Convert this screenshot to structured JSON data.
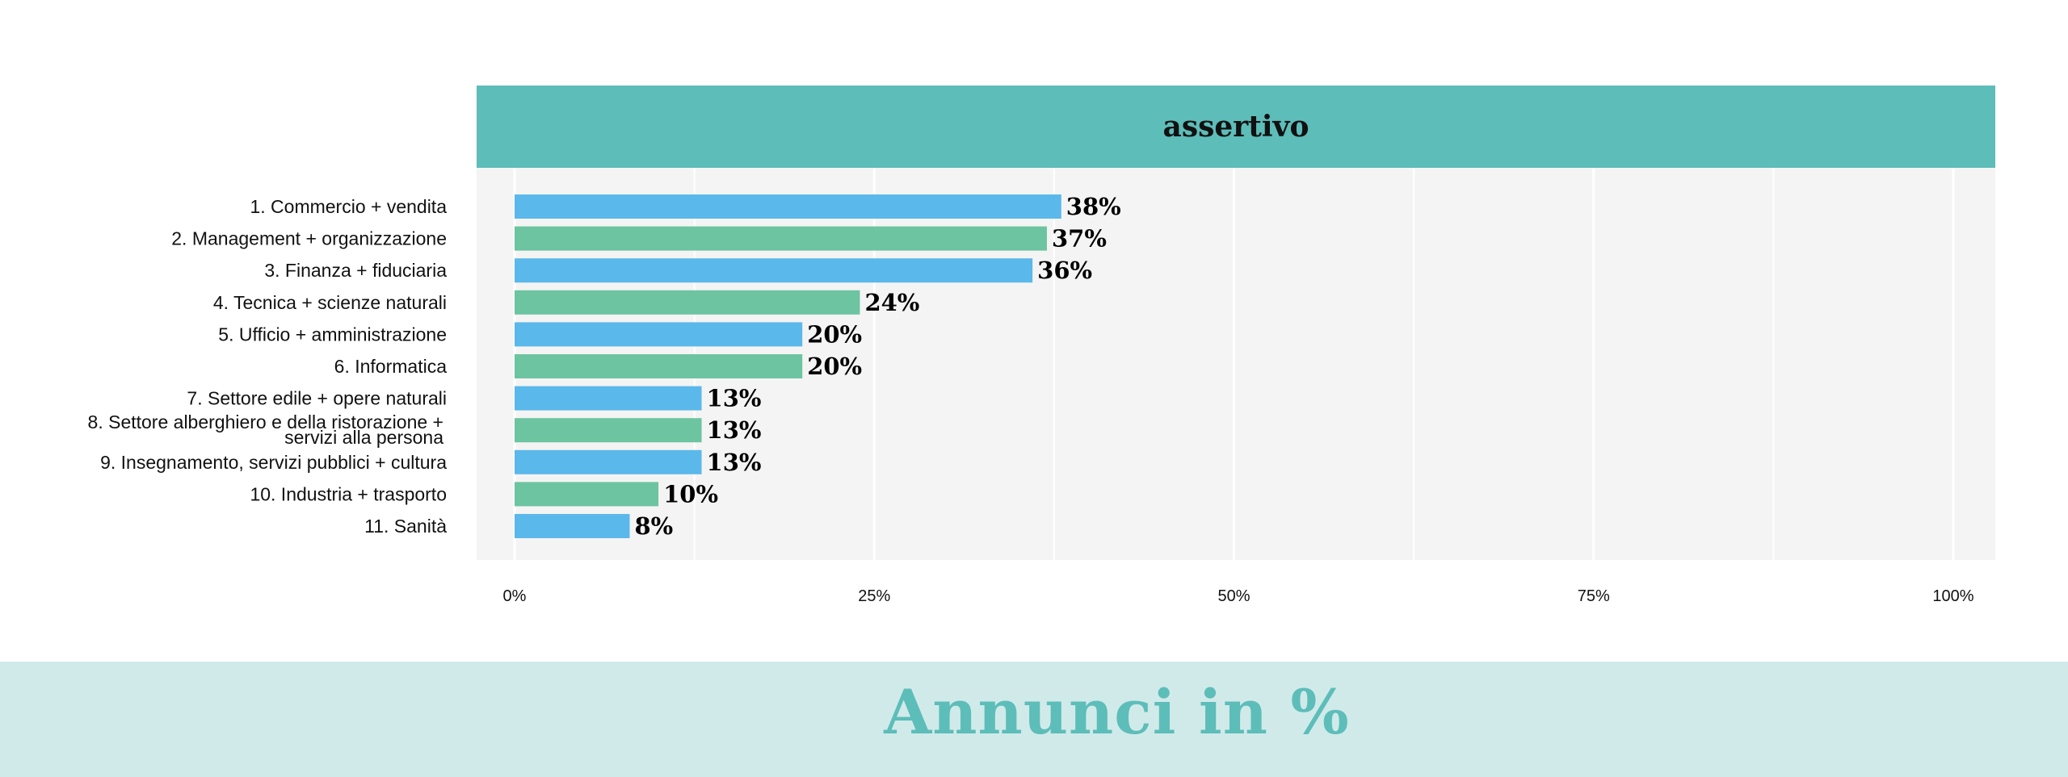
{
  "chart_data": {
    "type": "bar",
    "orientation": "horizontal",
    "facet_title": "assertivo",
    "categories": [
      "1. Commercio + vendita",
      "2. Management + organizzazione",
      "3. Finanza + fiduciaria",
      "4. Tecnica + scienze naturali",
      "5. Ufficio + amministrazione",
      "6. Informatica",
      "7. Settore edile + opere naturali",
      "8. Settore alberghiero e della ristorazione + servizi alla persona",
      "9. Insegnamento, servizi pubblici + cultura",
      "10. Industria + trasporto",
      "11. Sanità"
    ],
    "category_lines": [
      [
        "1. Commercio + vendita"
      ],
      [
        "2. Management + organizzazione"
      ],
      [
        "3. Finanza + fiduciaria"
      ],
      [
        "4. Tecnica + scienze naturali"
      ],
      [
        "5. Ufficio + amministrazione"
      ],
      [
        "6. Informatica"
      ],
      [
        "7. Settore edile + opere naturali"
      ],
      [
        "8. Settore alberghiero e della ristorazione +",
        "servizi alla persona"
      ],
      [
        "9. Insegnamento, servizi pubblici + cultura"
      ],
      [
        "10. Industria + trasporto"
      ],
      [
        "11. Sanità"
      ]
    ],
    "values": [
      38,
      37,
      36,
      24,
      20,
      20,
      13,
      13,
      13,
      10,
      8
    ],
    "value_labels": [
      "38%",
      "37%",
      "36%",
      "24%",
      "20%",
      "20%",
      "13%",
      "13%",
      "13%",
      "10%",
      "8%"
    ],
    "bar_colors": [
      "#5bb8ea",
      "#6cc4a1",
      "#5bb8ea",
      "#6cc4a1",
      "#5bb8ea",
      "#6cc4a1",
      "#5bb8ea",
      "#6cc4a1",
      "#5bb8ea",
      "#6cc4a1",
      "#5bb8ea"
    ],
    "x_ticks": [
      0,
      25,
      50,
      75,
      100
    ],
    "x_tick_labels": [
      "0%",
      "25%",
      "50%",
      "75%",
      "100%"
    ],
    "xlim": [
      0,
      100
    ],
    "grid": true,
    "colors": {
      "header_bg": "#5dbdb9",
      "panel_bg": "#f4f4f4",
      "gridline": "#ffffff",
      "footer_bg": "#d0eaea",
      "footer_text": "#5dbdb9"
    }
  },
  "footer": {
    "title": "Annunci in %"
  }
}
